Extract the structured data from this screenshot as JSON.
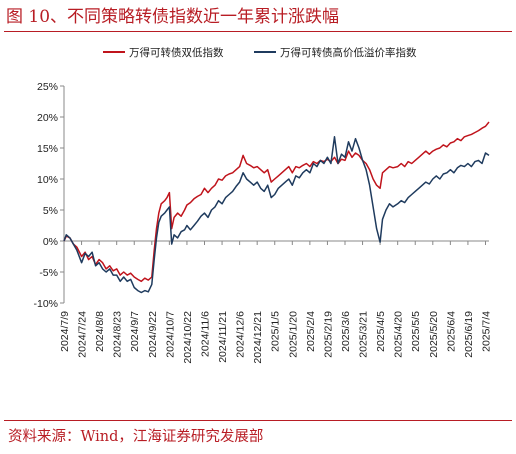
{
  "header": {
    "title": "图 10、不同策略转债指数近一年累计涨跌幅"
  },
  "footer": {
    "source": "资料来源：Wind，江海证券研究发展部"
  },
  "colors": {
    "accent": "#b81d24",
    "series_red": "#c0141c",
    "series_navy": "#1f3b5e",
    "axis": "#888888"
  },
  "chart_data": {
    "type": "line",
    "title": "",
    "xlabel": "",
    "ylabel": "",
    "ylim": [
      -10,
      25
    ],
    "y_ticks": [
      "25%",
      "20%",
      "15%",
      "10%",
      "5%",
      "0%",
      "-5%",
      "-10%"
    ],
    "y_tick_values": [
      25,
      20,
      15,
      10,
      5,
      0,
      -5,
      -10
    ],
    "x_ticks": [
      "2024/7/9",
      "2024/7/24",
      "2024/8/8",
      "2024/8/23",
      "2024/9/7",
      "2024/9/22",
      "2024/10/7",
      "2024/10/22",
      "2024/11/6",
      "2024/11/21",
      "2024/12/6",
      "2024/12/21",
      "2025/1/5",
      "2025/1/20",
      "2025/2/4",
      "2025/2/19",
      "2025/3/6",
      "2025/3/21",
      "2025/4/5",
      "2025/4/20",
      "2025/5/5",
      "2025/5/20",
      "2025/6/4",
      "2025/6/19",
      "2025/7/4"
    ],
    "legend_position": "top",
    "grid": false,
    "series": [
      {
        "name": "万得可转债双低指数",
        "color": "#c0141c",
        "points": [
          [
            "2024/7/9",
            0
          ],
          [
            "2024/7/11",
            0.8
          ],
          [
            "2024/7/14",
            0.5
          ],
          [
            "2024/7/17",
            -0.5
          ],
          [
            "2024/7/20",
            -1.0
          ],
          [
            "2024/7/24",
            -2.5
          ],
          [
            "2024/7/27",
            -1.8
          ],
          [
            "2024/7/30",
            -3.0
          ],
          [
            "2024/8/2",
            -2.5
          ],
          [
            "2024/8/5",
            -3.8
          ],
          [
            "2024/8/8",
            -3.0
          ],
          [
            "2024/8/11",
            -3.5
          ],
          [
            "2024/8/14",
            -4.5
          ],
          [
            "2024/8/17",
            -4.0
          ],
          [
            "2024/8/20",
            -4.8
          ],
          [
            "2024/8/23",
            -4.5
          ],
          [
            "2024/8/26",
            -5.5
          ],
          [
            "2024/8/29",
            -5.0
          ],
          [
            "2024/9/1",
            -5.5
          ],
          [
            "2024/9/4",
            -5.2
          ],
          [
            "2024/9/7",
            -5.8
          ],
          [
            "2024/9/10",
            -6.2
          ],
          [
            "2024/9/13",
            -6.5
          ],
          [
            "2024/9/16",
            -6.0
          ],
          [
            "2024/9/19",
            -6.3
          ],
          [
            "2024/9/22",
            -5.8
          ],
          [
            "2024/9/24",
            -1.5
          ],
          [
            "2024/9/26",
            2.0
          ],
          [
            "2024/9/28",
            4.5
          ],
          [
            "2024/9/30",
            6.0
          ],
          [
            "2024/10/3",
            6.5
          ],
          [
            "2024/10/5",
            7.0
          ],
          [
            "2024/10/7",
            7.8
          ],
          [
            "2024/10/9",
            2.0
          ],
          [
            "2024/10/11",
            3.8
          ],
          [
            "2024/10/14",
            4.5
          ],
          [
            "2024/10/17",
            4.0
          ],
          [
            "2024/10/20",
            5.0
          ],
          [
            "2024/10/22",
            5.8
          ],
          [
            "2024/10/25",
            6.2
          ],
          [
            "2024/10/28",
            6.8
          ],
          [
            "2024/10/31",
            7.2
          ],
          [
            "2024/11/3",
            7.5
          ],
          [
            "2024/11/6",
            8.5
          ],
          [
            "2024/11/9",
            7.8
          ],
          [
            "2024/11/12",
            8.5
          ],
          [
            "2024/11/15",
            9.0
          ],
          [
            "2024/11/18",
            10.0
          ],
          [
            "2024/11/21",
            9.8
          ],
          [
            "2024/11/24",
            10.5
          ],
          [
            "2024/11/27",
            10.8
          ],
          [
            "2024/11/30",
            11.0
          ],
          [
            "2024/12/3",
            11.5
          ],
          [
            "2024/12/6",
            12.0
          ],
          [
            "2024/12/9",
            13.8
          ],
          [
            "2024/12/12",
            12.5
          ],
          [
            "2024/12/15",
            12.2
          ],
          [
            "2024/12/18",
            11.8
          ],
          [
            "2024/12/21",
            12.0
          ],
          [
            "2024/12/24",
            11.5
          ],
          [
            "2024/12/27",
            11.0
          ],
          [
            "2024/12/30",
            11.5
          ],
          [
            "2025/1/2",
            9.5
          ],
          [
            "2025/1/5",
            10.0
          ],
          [
            "2025/1/8",
            10.5
          ],
          [
            "2025/1/11",
            11.0
          ],
          [
            "2025/1/14",
            11.5
          ],
          [
            "2025/1/17",
            12.0
          ],
          [
            "2025/1/20",
            11.0
          ],
          [
            "2025/1/23",
            12.0
          ],
          [
            "2025/1/26",
            11.8
          ],
          [
            "2025/1/29",
            12.2
          ],
          [
            "2025/2/1",
            12.5
          ],
          [
            "2025/2/4",
            12.0
          ],
          [
            "2025/2/7",
            12.8
          ],
          [
            "2025/2/10",
            12.5
          ],
          [
            "2025/2/13",
            13.0
          ],
          [
            "2025/2/16",
            12.8
          ],
          [
            "2025/2/19",
            13.2
          ],
          [
            "2025/2/22",
            12.8
          ],
          [
            "2025/2/25",
            13.5
          ],
          [
            "2025/2/28",
            12.5
          ],
          [
            "2025/3/3",
            13.2
          ],
          [
            "2025/3/6",
            13.0
          ],
          [
            "2025/3/9",
            14.5
          ],
          [
            "2025/3/12",
            13.5
          ],
          [
            "2025/3/15",
            14.2
          ],
          [
            "2025/3/18",
            13.8
          ],
          [
            "2025/3/21",
            13.0
          ],
          [
            "2025/3/24",
            12.5
          ],
          [
            "2025/3/27",
            11.5
          ],
          [
            "2025/3/30",
            10.0
          ],
          [
            "2025/4/2",
            9.0
          ],
          [
            "2025/4/5",
            8.5
          ],
          [
            "2025/4/7",
            11.0
          ],
          [
            "2025/4/10",
            11.5
          ],
          [
            "2025/4/13",
            12.0
          ],
          [
            "2025/4/16",
            11.8
          ],
          [
            "2025/4/20",
            12.0
          ],
          [
            "2025/4/23",
            12.5
          ],
          [
            "2025/4/26",
            12.0
          ],
          [
            "2025/4/29",
            12.8
          ],
          [
            "2025/5/2",
            12.5
          ],
          [
            "2025/5/5",
            13.0
          ],
          [
            "2025/5/8",
            13.5
          ],
          [
            "2025/5/11",
            14.0
          ],
          [
            "2025/5/14",
            14.5
          ],
          [
            "2025/5/17",
            14.0
          ],
          [
            "2025/5/20",
            14.5
          ],
          [
            "2025/5/23",
            14.8
          ],
          [
            "2025/5/26",
            15.0
          ],
          [
            "2025/5/29",
            15.5
          ],
          [
            "2025/6/1",
            15.2
          ],
          [
            "2025/6/4",
            15.8
          ],
          [
            "2025/6/7",
            16.0
          ],
          [
            "2025/6/10",
            16.5
          ],
          [
            "2025/6/13",
            16.2
          ],
          [
            "2025/6/16",
            16.8
          ],
          [
            "2025/6/19",
            17.0
          ],
          [
            "2025/6/22",
            17.2
          ],
          [
            "2025/6/25",
            17.5
          ],
          [
            "2025/6/28",
            17.8
          ],
          [
            "2025/7/1",
            18.2
          ],
          [
            "2025/7/4",
            18.5
          ],
          [
            "2025/7/7",
            19.2
          ]
        ]
      },
      {
        "name": "万得可转债高价低溢价率指数",
        "color": "#1f3b5e",
        "points": [
          [
            "2024/7/9",
            0
          ],
          [
            "2024/7/11",
            1.0
          ],
          [
            "2024/7/14",
            0.5
          ],
          [
            "2024/7/17",
            -0.5
          ],
          [
            "2024/7/20",
            -1.5
          ],
          [
            "2024/7/24",
            -3.5
          ],
          [
            "2024/7/27",
            -2.0
          ],
          [
            "2024/7/30",
            -2.5
          ],
          [
            "2024/8/2",
            -1.8
          ],
          [
            "2024/8/5",
            -4.0
          ],
          [
            "2024/8/8",
            -3.5
          ],
          [
            "2024/8/11",
            -4.5
          ],
          [
            "2024/8/14",
            -5.0
          ],
          [
            "2024/8/17",
            -4.5
          ],
          [
            "2024/8/20",
            -5.5
          ],
          [
            "2024/8/23",
            -5.5
          ],
          [
            "2024/8/26",
            -6.5
          ],
          [
            "2024/8/29",
            -5.8
          ],
          [
            "2024/9/1",
            -6.5
          ],
          [
            "2024/9/4",
            -6.2
          ],
          [
            "2024/9/7",
            -7.5
          ],
          [
            "2024/9/10",
            -8.0
          ],
          [
            "2024/9/13",
            -8.3
          ],
          [
            "2024/9/16",
            -8.0
          ],
          [
            "2024/9/19",
            -8.2
          ],
          [
            "2024/9/22",
            -7.0
          ],
          [
            "2024/9/24",
            -3.0
          ],
          [
            "2024/9/26",
            0.5
          ],
          [
            "2024/9/28",
            3.0
          ],
          [
            "2024/9/30",
            4.0
          ],
          [
            "2024/10/3",
            4.5
          ],
          [
            "2024/10/5",
            5.0
          ],
          [
            "2024/10/7",
            5.5
          ],
          [
            "2024/10/9",
            -0.5
          ],
          [
            "2024/10/11",
            1.0
          ],
          [
            "2024/10/14",
            0.5
          ],
          [
            "2024/10/17",
            1.5
          ],
          [
            "2024/10/20",
            1.8
          ],
          [
            "2024/10/22",
            2.5
          ],
          [
            "2024/10/25",
            1.8
          ],
          [
            "2024/10/28",
            2.5
          ],
          [
            "2024/10/31",
            3.2
          ],
          [
            "2024/11/3",
            4.0
          ],
          [
            "2024/11/6",
            4.5
          ],
          [
            "2024/11/9",
            3.8
          ],
          [
            "2024/11/12",
            5.0
          ],
          [
            "2024/11/15",
            5.5
          ],
          [
            "2024/11/18",
            6.5
          ],
          [
            "2024/11/21",
            6.0
          ],
          [
            "2024/11/24",
            7.0
          ],
          [
            "2024/11/27",
            7.5
          ],
          [
            "2024/11/30",
            8.0
          ],
          [
            "2024/12/3",
            8.8
          ],
          [
            "2024/12/6",
            9.5
          ],
          [
            "2024/12/9",
            11.0
          ],
          [
            "2024/12/12",
            10.0
          ],
          [
            "2024/12/15",
            9.5
          ],
          [
            "2024/12/18",
            9.0
          ],
          [
            "2024/12/21",
            9.5
          ],
          [
            "2024/12/24",
            8.5
          ],
          [
            "2024/12/27",
            8.0
          ],
          [
            "2024/12/30",
            9.0
          ],
          [
            "2025/1/2",
            7.0
          ],
          [
            "2025/1/5",
            7.5
          ],
          [
            "2025/1/8",
            8.5
          ],
          [
            "2025/1/11",
            9.0
          ],
          [
            "2025/1/14",
            9.5
          ],
          [
            "2025/1/17",
            10.0
          ],
          [
            "2025/1/20",
            9.0
          ],
          [
            "2025/1/23",
            10.5
          ],
          [
            "2025/1/26",
            10.2
          ],
          [
            "2025/1/29",
            11.0
          ],
          [
            "2025/2/1",
            11.5
          ],
          [
            "2025/2/4",
            11.0
          ],
          [
            "2025/2/7",
            12.5
          ],
          [
            "2025/2/10",
            12.0
          ],
          [
            "2025/2/13",
            13.0
          ],
          [
            "2025/2/16",
            12.5
          ],
          [
            "2025/2/19",
            13.5
          ],
          [
            "2025/2/22",
            12.5
          ],
          [
            "2025/2/25",
            16.8
          ],
          [
            "2025/2/28",
            12.5
          ],
          [
            "2025/3/3",
            14.0
          ],
          [
            "2025/3/6",
            13.5
          ],
          [
            "2025/3/9",
            16.0
          ],
          [
            "2025/3/12",
            14.5
          ],
          [
            "2025/3/15",
            16.5
          ],
          [
            "2025/3/18",
            15.0
          ],
          [
            "2025/3/21",
            13.0
          ],
          [
            "2025/3/24",
            11.5
          ],
          [
            "2025/3/27",
            9.0
          ],
          [
            "2025/3/30",
            5.5
          ],
          [
            "2025/4/2",
            2.0
          ],
          [
            "2025/4/5",
            -0.2
          ],
          [
            "2025/4/7",
            3.5
          ],
          [
            "2025/4/10",
            5.0
          ],
          [
            "2025/4/13",
            6.0
          ],
          [
            "2025/4/16",
            5.5
          ],
          [
            "2025/4/20",
            6.0
          ],
          [
            "2025/4/23",
            6.5
          ],
          [
            "2025/4/26",
            6.2
          ],
          [
            "2025/4/29",
            7.0
          ],
          [
            "2025/5/2",
            7.5
          ],
          [
            "2025/5/5",
            8.0
          ],
          [
            "2025/5/8",
            8.5
          ],
          [
            "2025/5/11",
            9.0
          ],
          [
            "2025/5/14",
            9.5
          ],
          [
            "2025/5/17",
            9.2
          ],
          [
            "2025/5/20",
            10.0
          ],
          [
            "2025/5/23",
            10.5
          ],
          [
            "2025/5/26",
            10.0
          ],
          [
            "2025/5/29",
            10.8
          ],
          [
            "2025/6/1",
            11.0
          ],
          [
            "2025/6/4",
            11.5
          ],
          [
            "2025/6/7",
            11.0
          ],
          [
            "2025/6/10",
            11.8
          ],
          [
            "2025/6/13",
            12.2
          ],
          [
            "2025/6/16",
            12.0
          ],
          [
            "2025/6/19",
            12.5
          ],
          [
            "2025/6/22",
            12.0
          ],
          [
            "2025/6/25",
            12.8
          ],
          [
            "2025/6/28",
            13.0
          ],
          [
            "2025/7/1",
            12.5
          ],
          [
            "2025/7/4",
            14.2
          ],
          [
            "2025/7/7",
            13.8
          ]
        ]
      }
    ]
  }
}
